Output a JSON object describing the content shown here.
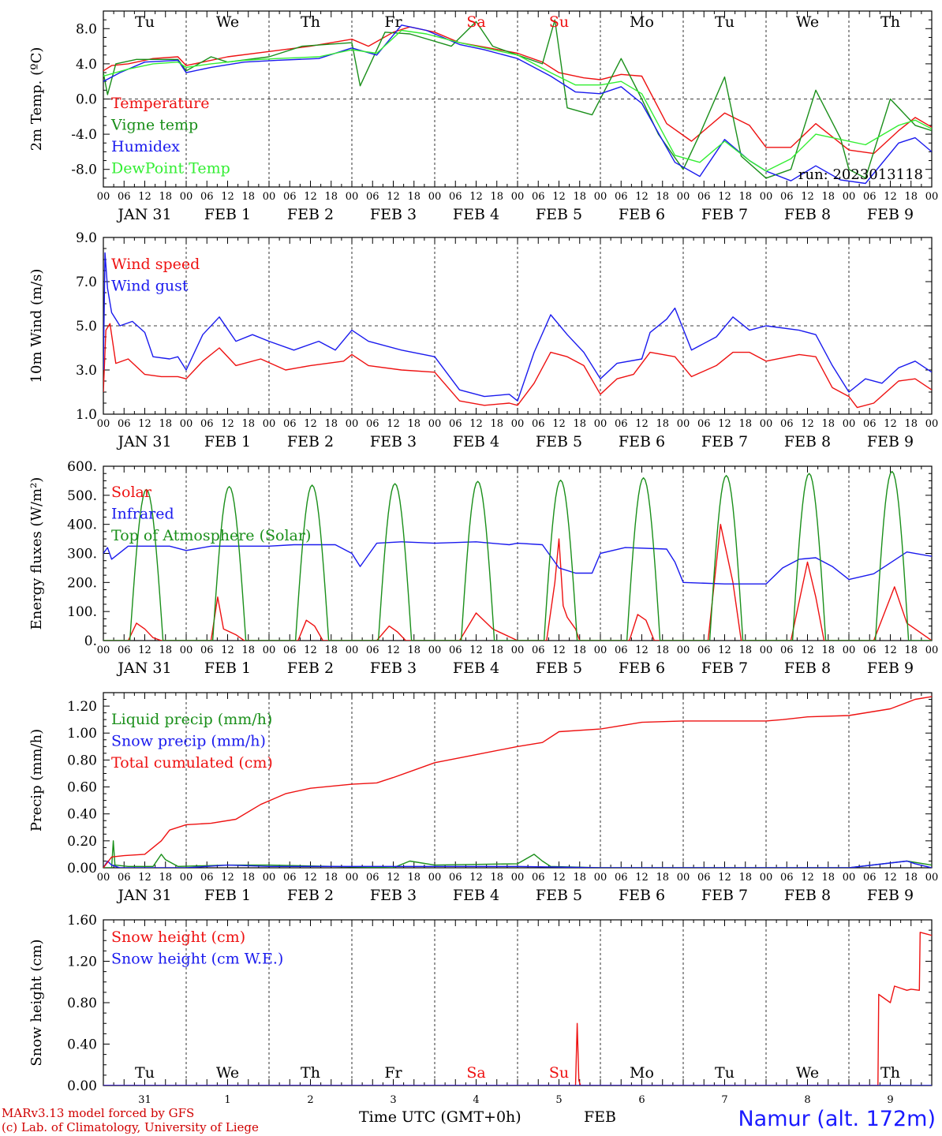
{
  "colors": {
    "red": "#ee1111",
    "green": "#1a8f1a",
    "blue": "#1a1aee",
    "lime": "#33ee33",
    "weekend": "#ee1111",
    "text": "#000000"
  },
  "days": {
    "header_top": [
      "Tu",
      "We",
      "Th",
      "Fr",
      "Sa",
      "Su",
      "Mo",
      "Tu",
      "We",
      "Th"
    ],
    "header_bottom": [
      "Tu",
      "We",
      "Th",
      "Fr",
      "Sa",
      "Su",
      "Mo",
      "Tu",
      "We",
      "Th"
    ],
    "weekend_index": [
      4,
      5
    ],
    "date_labels": [
      "JAN 31",
      "FEB  1",
      "FEB  2",
      "FEB  3",
      "FEB  4",
      "FEB  5",
      "FEB  6",
      "FEB  7",
      "FEB  8",
      "FEB  9"
    ],
    "day_numbers": [
      "31",
      "1",
      "2",
      "3",
      "4",
      "5",
      "6",
      "7",
      "8",
      "9"
    ],
    "hour_ticks": [
      "00",
      "06",
      "12",
      "18"
    ],
    "final_tick": "00"
  },
  "footer": {
    "credit_line1": "MARv3.13 model forced by GFS",
    "credit_line2": "(c) Lab. of Climatology, University of Liege",
    "axis_title": "Time UTC (GMT+0h)",
    "month": "FEB",
    "site": "Namur (alt. 172m)"
  },
  "chart_data": [
    {
      "id": "temp",
      "type": "line",
      "ylabel": "2m Temp. (ºC)",
      "ylim": [
        -10,
        10
      ],
      "yticks": [
        -8,
        -4,
        0,
        4,
        8
      ],
      "ytick_labels": [
        "-8.0",
        "-4.0",
        "0.0",
        "4.0",
        "8.0"
      ],
      "dashed_y": [
        0
      ],
      "run_label": "run: 2023013118",
      "x_unit": "days since JAN 31 00 UTC",
      "series": [
        {
          "name": "Temperature",
          "color": "red",
          "x": [
            0,
            0.1,
            0.3,
            0.6,
            0.9,
            1.0,
            1.2,
            1.5,
            2.0,
            2.5,
            3.0,
            3.2,
            3.5,
            3.7,
            4.0,
            4.3,
            4.6,
            5.0,
            5.3,
            5.5,
            5.8,
            6.0,
            6.25,
            6.5,
            6.8,
            7.1,
            7.5,
            7.8,
            8.0,
            8.3,
            8.6,
            9.0,
            9.3,
            9.6,
            9.8,
            10.0
          ],
          "values": [
            3.2,
            3.8,
            4.0,
            4.6,
            4.8,
            3.8,
            4.2,
            4.8,
            5.4,
            6.0,
            6.8,
            6.0,
            7.6,
            8.2,
            7.6,
            6.4,
            5.9,
            5.2,
            4.2,
            3.0,
            2.4,
            2.2,
            2.8,
            2.6,
            -2.8,
            -4.8,
            -1.6,
            -3.0,
            -5.5,
            -5.5,
            -2.8,
            -5.8,
            -6.2,
            -3.6,
            -2.1,
            -3.2
          ]
        },
        {
          "name": "Vigne temp",
          "color": "green",
          "x": [
            0,
            0.05,
            0.15,
            0.4,
            0.9,
            1.0,
            1.3,
            1.5,
            2.0,
            2.4,
            3.0,
            3.1,
            3.4,
            3.7,
            4.2,
            4.5,
            4.7,
            5.0,
            5.3,
            5.45,
            5.6,
            5.9,
            6.25,
            6.5,
            6.7,
            7.0,
            7.2,
            7.5,
            7.7,
            8.0,
            8.3,
            8.6,
            8.9,
            9.0,
            9.2,
            9.5,
            9.8,
            10.0
          ],
          "values": [
            3.0,
            0.5,
            4.0,
            4.5,
            4.5,
            3.2,
            4.8,
            4.2,
            4.8,
            6.0,
            6.4,
            1.5,
            7.6,
            7.4,
            6.0,
            8.8,
            6.0,
            5.0,
            4.0,
            9.0,
            -1.0,
            -1.8,
            4.6,
            0.0,
            -4.0,
            -8.0,
            -4.0,
            2.5,
            -6.5,
            -9.0,
            -8.0,
            1.0,
            -4.5,
            -8.0,
            -9.0,
            0.0,
            -3.0,
            -3.6
          ]
        },
        {
          "name": "Humidex",
          "color": "blue",
          "x": [
            0,
            0.2,
            0.5,
            0.9,
            1.0,
            1.3,
            1.7,
            2.1,
            2.6,
            3.0,
            3.3,
            3.6,
            3.9,
            4.3,
            4.6,
            5.0,
            5.4,
            5.7,
            6.0,
            6.25,
            6.5,
            6.9,
            7.2,
            7.5,
            7.8,
            8.0,
            8.3,
            8.6,
            8.9,
            9.2,
            9.6,
            9.8,
            10.0
          ],
          "values": [
            2.0,
            3.0,
            4.2,
            4.4,
            3.0,
            3.6,
            4.2,
            4.4,
            4.6,
            5.8,
            5.0,
            8.4,
            7.8,
            6.2,
            5.6,
            4.6,
            2.6,
            0.8,
            0.6,
            1.4,
            -0.5,
            -7.2,
            -8.8,
            -4.6,
            -7.0,
            -8.2,
            -9.3,
            -7.6,
            -9.2,
            -9.6,
            -5.0,
            -4.4,
            -6.0
          ]
        },
        {
          "name": "DewPoint Temp",
          "color": "lime",
          "x": [
            0,
            0.3,
            0.6,
            0.9,
            1.0,
            1.3,
            1.7,
            2.1,
            2.6,
            3.0,
            3.3,
            3.6,
            3.9,
            4.3,
            4.6,
            5.0,
            5.4,
            5.7,
            6.0,
            6.25,
            6.5,
            6.9,
            7.2,
            7.5,
            7.8,
            8.0,
            8.3,
            8.6,
            8.9,
            9.2,
            9.6,
            9.8,
            10.0
          ],
          "values": [
            2.6,
            3.4,
            4.0,
            4.2,
            3.6,
            4.0,
            4.4,
            4.6,
            4.8,
            5.6,
            5.2,
            7.8,
            7.4,
            6.4,
            5.8,
            5.0,
            3.0,
            1.6,
            1.6,
            2.0,
            0.6,
            -6.4,
            -7.2,
            -4.8,
            -7.0,
            -8.2,
            -6.8,
            -4.0,
            -4.6,
            -5.2,
            -3.0,
            -2.4,
            -3.4
          ]
        }
      ]
    },
    {
      "id": "wind",
      "type": "line",
      "ylabel": "10m Wind (m/s)",
      "ylim": [
        1,
        9
      ],
      "yticks": [
        1,
        3,
        5,
        7,
        9
      ],
      "ytick_labels": [
        "1.0",
        "3.0",
        "5.0",
        "7.0",
        "9.0"
      ],
      "dashed_y": [
        5
      ],
      "x_unit": "days since JAN 31 00 UTC",
      "series": [
        {
          "name": "Wind speed",
          "color": "red",
          "x": [
            0,
            0.03,
            0.08,
            0.15,
            0.3,
            0.5,
            0.7,
            0.9,
            1.0,
            1.2,
            1.4,
            1.6,
            1.9,
            2.2,
            2.5,
            2.9,
            3.0,
            3.2,
            3.6,
            4.0,
            4.3,
            4.6,
            4.9,
            5.0,
            5.2,
            5.4,
            5.6,
            5.8,
            6.0,
            6.2,
            6.4,
            6.6,
            6.9,
            7.1,
            7.4,
            7.6,
            7.8,
            8.0,
            8.4,
            8.6,
            8.8,
            9.0,
            9.1,
            9.3,
            9.6,
            9.8,
            10.0
          ],
          "values": [
            2.0,
            4.8,
            5.1,
            3.3,
            3.5,
            2.8,
            2.7,
            2.7,
            2.6,
            3.4,
            4.0,
            3.2,
            3.5,
            3.0,
            3.2,
            3.4,
            3.7,
            3.2,
            3.0,
            2.9,
            1.6,
            1.4,
            1.5,
            1.4,
            2.4,
            3.8,
            3.6,
            3.2,
            1.9,
            2.6,
            2.8,
            3.8,
            3.6,
            2.7,
            3.2,
            3.8,
            3.8,
            3.4,
            3.7,
            3.6,
            2.2,
            1.8,
            1.3,
            1.5,
            2.5,
            2.6,
            2.1
          ]
        },
        {
          "name": "Wind gust",
          "color": "blue",
          "x": [
            0,
            0.02,
            0.05,
            0.1,
            0.2,
            0.35,
            0.5,
            0.6,
            0.8,
            0.9,
            1.0,
            1.2,
            1.4,
            1.6,
            1.8,
            2.0,
            2.3,
            2.6,
            2.8,
            3.0,
            3.2,
            3.6,
            4.0,
            4.3,
            4.6,
            4.9,
            5.0,
            5.2,
            5.4,
            5.6,
            5.8,
            6.0,
            6.2,
            6.5,
            6.6,
            6.8,
            6.9,
            7.1,
            7.4,
            7.6,
            7.8,
            8.0,
            8.4,
            8.6,
            8.8,
            9.0,
            9.2,
            9.4,
            9.6,
            9.8,
            10.0
          ],
          "values": [
            3.0,
            8.3,
            6.7,
            5.6,
            5.0,
            5.2,
            4.7,
            3.6,
            3.5,
            3.6,
            3.0,
            4.6,
            5.4,
            4.3,
            4.6,
            4.3,
            3.9,
            4.3,
            3.9,
            4.8,
            4.3,
            3.9,
            3.6,
            2.1,
            1.8,
            1.9,
            1.6,
            3.8,
            5.5,
            4.6,
            3.8,
            2.6,
            3.3,
            3.5,
            4.7,
            5.3,
            5.8,
            3.9,
            4.5,
            5.4,
            4.8,
            5.0,
            4.8,
            4.6,
            3.2,
            2.0,
            2.6,
            2.4,
            3.1,
            3.4,
            2.9
          ]
        }
      ]
    },
    {
      "id": "energy",
      "type": "line",
      "ylabel": "Energy fluxes (W/m²)",
      "ylim": [
        0,
        600
      ],
      "yticks": [
        0,
        100,
        200,
        300,
        400,
        500,
        600
      ],
      "ytick_labels": [
        "0.",
        "100.",
        "200.",
        "300.",
        "400.",
        "500.",
        "600."
      ],
      "x_unit": "days since JAN 31 00 UTC",
      "series": [
        {
          "name": "Solar",
          "color": "red",
          "x": [
            0,
            0.3,
            0.4,
            0.5,
            0.6,
            0.7,
            1.0,
            1.3,
            1.38,
            1.45,
            1.6,
            1.7,
            2.0,
            2.35,
            2.45,
            2.55,
            2.65,
            3.0,
            3.3,
            3.45,
            3.55,
            3.65,
            4.0,
            4.3,
            4.5,
            4.7,
            5.0,
            5.35,
            5.45,
            5.5,
            5.55,
            5.6,
            5.7,
            5.75,
            6.0,
            6.35,
            6.45,
            6.55,
            6.65,
            7.0,
            7.3,
            7.45,
            7.6,
            7.7,
            8.0,
            8.3,
            8.5,
            8.6,
            8.7,
            9.0,
            9.3,
            9.55,
            9.7,
            10.0
          ],
          "values": [
            0,
            0,
            60,
            40,
            10,
            0,
            0,
            0,
            150,
            40,
            20,
            0,
            0,
            0,
            70,
            50,
            0,
            0,
            0,
            50,
            30,
            0,
            0,
            0,
            95,
            40,
            0,
            0,
            200,
            350,
            120,
            80,
            40,
            0,
            0,
            0,
            90,
            70,
            0,
            0,
            0,
            400,
            200,
            0,
            0,
            0,
            270,
            150,
            0,
            0,
            0,
            185,
            60,
            0
          ]
        },
        {
          "name": "Infrared",
          "color": "blue",
          "x": [
            0,
            0.05,
            0.1,
            0.3,
            0.8,
            1.0,
            1.3,
            1.8,
            2.0,
            2.3,
            2.8,
            3.0,
            3.1,
            3.3,
            3.6,
            4.0,
            4.5,
            4.9,
            5.0,
            5.3,
            5.5,
            5.7,
            5.9,
            6.0,
            6.3,
            6.8,
            6.9,
            7.0,
            7.5,
            8.0,
            8.2,
            8.4,
            8.6,
            8.8,
            9.0,
            9.3,
            9.7,
            10.0
          ],
          "values": [
            300,
            320,
            280,
            325,
            325,
            310,
            325,
            325,
            325,
            330,
            330,
            300,
            255,
            335,
            340,
            335,
            340,
            330,
            335,
            330,
            250,
            232,
            232,
            300,
            320,
            315,
            270,
            200,
            195,
            195,
            250,
            280,
            285,
            255,
            210,
            230,
            305,
            290
          ]
        },
        {
          "name": "Top of Atmosphere (Solar)",
          "color": "green",
          "type": "daily_arc",
          "sunrise": 0.32,
          "sunset": 0.72,
          "peaks": [
            520,
            530,
            535,
            540,
            548,
            552,
            560,
            568,
            575,
            582
          ]
        }
      ]
    },
    {
      "id": "precip",
      "type": "line",
      "ylabel": "Precip (mm/h)",
      "ylim": [
        0,
        1.3
      ],
      "yticks": [
        0,
        0.2,
        0.4,
        0.6,
        0.8,
        1.0,
        1.2
      ],
      "ytick_labels": [
        "0.00",
        "0.20",
        "0.40",
        "0.60",
        "0.80",
        "1.00",
        "1.20"
      ],
      "x_unit": "days since JAN 31 00 UTC",
      "series": [
        {
          "name": "Liquid precip (mm/h)",
          "color": "green",
          "x": [
            0,
            0.1,
            0.12,
            0.14,
            0.3,
            0.6,
            0.7,
            0.75,
            0.9,
            1.5,
            2.0,
            3.5,
            3.7,
            4.0,
            5.0,
            5.2,
            5.3,
            5.4,
            6.0,
            9.0,
            9.7,
            10.0
          ],
          "values": [
            0,
            0,
            0.2,
            0.02,
            0.01,
            0.01,
            0.1,
            0.06,
            0.01,
            0.02,
            0.02,
            0.0,
            0.05,
            0.02,
            0.03,
            0.1,
            0.05,
            0.01,
            0.0,
            0.0,
            0.05,
            0.02
          ]
        },
        {
          "name": "Snow precip (mm/h)",
          "color": "blue",
          "x": [
            0,
            0.05,
            0.1,
            0.2,
            1.0,
            1.5,
            2.0,
            5.0,
            6.0,
            9.0,
            9.7,
            9.8,
            10.0
          ],
          "values": [
            0,
            0.05,
            0.02,
            0.0,
            0.0,
            0.02,
            0.01,
            0.01,
            0.0,
            0.0,
            0.05,
            0.03,
            0.0
          ]
        },
        {
          "name": "Total cumulated (cm)",
          "color": "red",
          "x": [
            0,
            0.1,
            0.25,
            0.5,
            0.7,
            0.8,
            1.0,
            1.3,
            1.6,
            1.9,
            2.2,
            2.5,
            3.0,
            3.3,
            3.5,
            4.0,
            4.5,
            5.0,
            5.3,
            5.5,
            6.0,
            6.2,
            6.5,
            7.0,
            7.5,
            8.0,
            8.2,
            8.5,
            9.0,
            9.5,
            9.8,
            10.0
          ],
          "values": [
            0,
            0.08,
            0.09,
            0.1,
            0.2,
            0.28,
            0.32,
            0.33,
            0.36,
            0.47,
            0.55,
            0.59,
            0.62,
            0.63,
            0.67,
            0.78,
            0.84,
            0.9,
            0.93,
            1.01,
            1.03,
            1.05,
            1.08,
            1.09,
            1.09,
            1.09,
            1.1,
            1.12,
            1.13,
            1.18,
            1.25,
            1.27
          ]
        }
      ]
    },
    {
      "id": "snow",
      "type": "line",
      "ylabel": "Snow height (cm)",
      "ylim": [
        0,
        1.6
      ],
      "yticks": [
        0,
        0.4,
        0.8,
        1.2,
        1.6
      ],
      "ytick_labels": [
        "0.00",
        "0.40",
        "0.80",
        "1.20",
        "1.60"
      ],
      "x_unit": "days since JAN 31 00 UTC",
      "series": [
        {
          "name": "Snow height (cm)",
          "color": "red",
          "x": [
            0,
            5.7,
            5.72,
            5.74,
            5.76,
            5.78,
            9.35,
            9.36,
            9.5,
            9.55,
            9.7,
            9.75,
            9.85,
            9.86,
            10.0
          ],
          "values": [
            0,
            0,
            0.6,
            0.05,
            0.0,
            0,
            0,
            0.88,
            0.8,
            0.96,
            0.92,
            0.93,
            0.92,
            1.48,
            1.45
          ]
        },
        {
          "name": "Snow height (cm W.E.)",
          "color": "blue",
          "x": [
            0,
            10
          ],
          "values": [
            0,
            0
          ]
        }
      ]
    }
  ]
}
